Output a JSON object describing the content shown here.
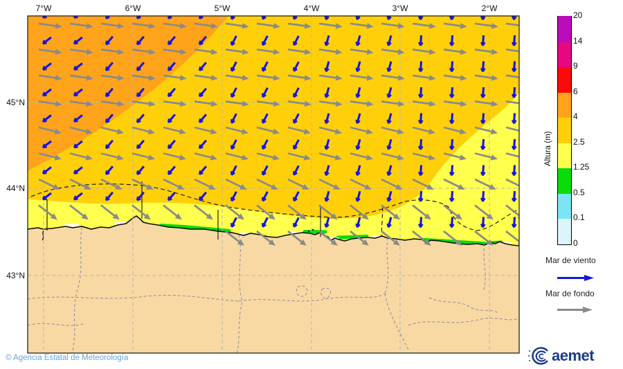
{
  "map": {
    "lon_labels": [
      "7°W",
      "6°W",
      "5°W",
      "4°W",
      "3°W",
      "2°W"
    ],
    "lat_labels": [
      "45°N",
      "44°N",
      "43°N"
    ],
    "sea_state_regions": [
      {
        "area": "mar abierto noroeste",
        "height_m": "4 - 6",
        "color": "#FFA41A"
      },
      {
        "area": "mar abierto centro",
        "height_m": "2.5 - 4",
        "color": "#FFD00A"
      },
      {
        "area": "sureste y franja costera",
        "height_m": "1.25 - 2.5",
        "color": "#FFFF4D"
      },
      {
        "area": "parches junto a costa",
        "height_m": "0.5 - 1.25",
        "color": "#0ADC0A"
      }
    ]
  },
  "colorbar": {
    "title": "Altura (m)",
    "ticks": [
      "0",
      "0.1",
      "0.5",
      "1.25",
      "2.5",
      "4",
      "6",
      "9",
      "14",
      "20"
    ],
    "segments": [
      {
        "from": "0",
        "to": "0.1",
        "color": "#DCF5FB"
      },
      {
        "from": "0.1",
        "to": "0.5",
        "color": "#7DE4F6"
      },
      {
        "from": "0.5",
        "to": "1.25",
        "color": "#0ADC0A"
      },
      {
        "from": "1.25",
        "to": "2.5",
        "color": "#FFFF4D"
      },
      {
        "from": "2.5",
        "to": "4",
        "color": "#FFD00A"
      },
      {
        "from": "4",
        "to": "6",
        "color": "#FFA41A"
      },
      {
        "from": "6",
        "to": "9",
        "color": "#F90B0B"
      },
      {
        "from": "9",
        "to": "14",
        "color": "#E50880"
      },
      {
        "from": "14",
        "to": "20",
        "color": "#B90DB9"
      }
    ]
  },
  "legend": {
    "wind_label": "Mar de viento",
    "swell_label": "Mar de fondo"
  },
  "wind_field": {
    "wind_dirs_deg_from_north": [
      {
        "x_max": 150,
        "deg": 232
      },
      {
        "x_max": 330,
        "deg": 220
      },
      {
        "x_max": 465,
        "deg": 207
      },
      {
        "x_max": 600,
        "deg": 195
      },
      {
        "x_max": 999,
        "deg": 184
      }
    ],
    "swell_dirs_deg_from_north": [
      {
        "y_max": 150,
        "deg": 98
      },
      {
        "y_max": 235,
        "deg": 104
      },
      {
        "y_max": 270,
        "deg": 116
      },
      {
        "y_max": 999,
        "deg": 128
      }
    ]
  },
  "palette": {
    "gold": "#FFD00A",
    "orange": "#FFA41A",
    "yellow": "#FFFF4D",
    "green": "#0ADC0A",
    "foam": "#FFFFFF",
    "land": "#F8D9A3",
    "coast": "#0A0A0A",
    "province": "#8B8BA3",
    "grid": "#B5B5B5",
    "zone": "#111111",
    "frame": "#222222",
    "wind_blue": "#1717DF",
    "swell_gray": "#8A8A8A"
  },
  "footer": {
    "copyright": "© Agencia Estatal de Meteorología"
  },
  "logo": {
    "text": "aemet"
  }
}
